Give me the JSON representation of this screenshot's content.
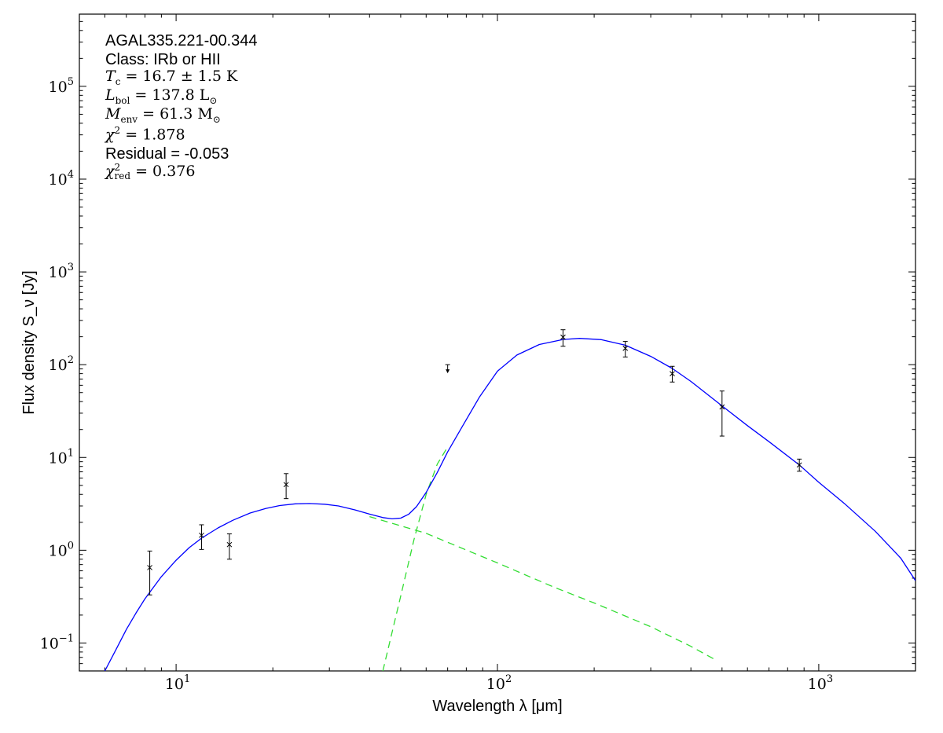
{
  "chart_data": {
    "type": "scatter",
    "xlabel": "Wavelength λ [μm]",
    "ylabel": "Flux density S_ν [Jy]",
    "xscale": "log",
    "yscale": "log",
    "xlim": [
      5,
      2000
    ],
    "ylim": [
      0.05,
      600000
    ],
    "x_ticks": [
      {
        "value": 10,
        "base": "10",
        "exp": "1"
      },
      {
        "value": 100,
        "base": "10",
        "exp": "2"
      },
      {
        "value": 1000,
        "base": "10",
        "exp": "3"
      }
    ],
    "y_ticks": [
      {
        "value": 0.1,
        "base": "10",
        "exp": "−1"
      },
      {
        "value": 1,
        "base": "10",
        "exp": "0"
      },
      {
        "value": 10,
        "base": "10",
        "exp": "1"
      },
      {
        "value": 100,
        "base": "10",
        "exp": "2"
      },
      {
        "value": 1000,
        "base": "10",
        "exp": "3"
      },
      {
        "value": 10000,
        "base": "10",
        "exp": "4"
      },
      {
        "value": 100000,
        "base": "10",
        "exp": "5"
      }
    ],
    "measurements": [
      {
        "x": 8.28,
        "y": 0.65,
        "ylo": 0.33,
        "yhi": 0.98
      },
      {
        "x": 12.0,
        "y": 1.45,
        "ylo": 1.02,
        "yhi": 1.88
      },
      {
        "x": 14.65,
        "y": 1.15,
        "ylo": 0.8,
        "yhi": 1.5
      },
      {
        "x": 22.0,
        "y": 5.1,
        "ylo": 3.6,
        "yhi": 6.7
      },
      {
        "x": 160,
        "y": 198,
        "ylo": 158,
        "yhi": 238
      },
      {
        "x": 250,
        "y": 150,
        "ylo": 121,
        "yhi": 178
      },
      {
        "x": 350,
        "y": 80,
        "ylo": 65,
        "yhi": 96
      },
      {
        "x": 500,
        "y": 35,
        "ylo": 17,
        "yhi": 52
      },
      {
        "x": 870,
        "y": 8.3,
        "ylo": 7.1,
        "yhi": 9.6
      }
    ],
    "upper_limits": [
      {
        "x": 70,
        "y": 100
      }
    ],
    "model_total": [
      [
        6.0,
        0.05
      ],
      [
        6.5,
        0.085
      ],
      [
        7.0,
        0.14
      ],
      [
        7.5,
        0.21
      ],
      [
        8.0,
        0.3
      ],
      [
        9.0,
        0.52
      ],
      [
        10,
        0.78
      ],
      [
        11,
        1.07
      ],
      [
        12,
        1.35
      ],
      [
        13.5,
        1.74
      ],
      [
        15,
        2.1
      ],
      [
        17,
        2.52
      ],
      [
        19,
        2.82
      ],
      [
        21,
        3.03
      ],
      [
        23.5,
        3.16
      ],
      [
        26,
        3.19
      ],
      [
        29,
        3.13
      ],
      [
        32,
        3.0
      ],
      [
        36,
        2.72
      ],
      [
        40,
        2.45
      ],
      [
        44,
        2.25
      ],
      [
        47,
        2.18
      ],
      [
        50,
        2.22
      ],
      [
        53,
        2.45
      ],
      [
        56,
        2.95
      ],
      [
        60,
        4.2
      ],
      [
        65,
        6.9
      ],
      [
        70,
        11.5
      ],
      [
        78,
        22
      ],
      [
        88,
        45
      ],
      [
        100,
        85
      ],
      [
        115,
        127
      ],
      [
        135,
        165
      ],
      [
        160,
        187
      ],
      [
        180,
        192
      ],
      [
        210,
        186
      ],
      [
        250,
        162
      ],
      [
        300,
        123
      ],
      [
        350,
        91
      ],
      [
        400,
        66
      ],
      [
        500,
        36
      ],
      [
        600,
        22
      ],
      [
        700,
        14.8
      ],
      [
        870,
        8.3
      ],
      [
        1000,
        5.4
      ],
      [
        1200,
        3.2
      ],
      [
        1500,
        1.6
      ],
      [
        1800,
        0.82
      ],
      [
        2000,
        0.47
      ]
    ],
    "model_warm": [
      [
        40,
        2.3
      ],
      [
        60,
        1.52
      ],
      [
        100,
        0.73
      ],
      [
        150,
        0.4
      ],
      [
        200,
        0.27
      ],
      [
        300,
        0.15
      ],
      [
        400,
        0.092
      ],
      [
        480,
        0.065
      ]
    ],
    "model_cold": [
      [
        44,
        0.05
      ],
      [
        50,
        0.32
      ],
      [
        55,
        1.3
      ],
      [
        60,
        4.0
      ],
      [
        65,
        8.5
      ],
      [
        70,
        13
      ]
    ],
    "colors": {
      "model_total": "#0000ff",
      "model_components": "#33dd33",
      "data": "#000000"
    }
  },
  "annotations": {
    "source": "AGAL335.221-00.344",
    "class": "Class: IRb or HII",
    "tc": {
      "sym": "T",
      "sub": "c",
      "val": " = 16.7 ± 1.5 K"
    },
    "lbol": {
      "sym": "L",
      "sub": "bol",
      "val": " = 137.8 L",
      "unit_sub": "⊙"
    },
    "menv": {
      "sym": "M",
      "sub": "env",
      "val": " = 61.3 M",
      "unit_sub": "⊙"
    },
    "chi2": {
      "sym": "χ",
      "sup": "2",
      "val": " = 1.878"
    },
    "residual": "Residual = -0.053",
    "chi2red": {
      "sym": "χ",
      "sup": "2",
      "sub": "red",
      "val": " = 0.376"
    }
  }
}
